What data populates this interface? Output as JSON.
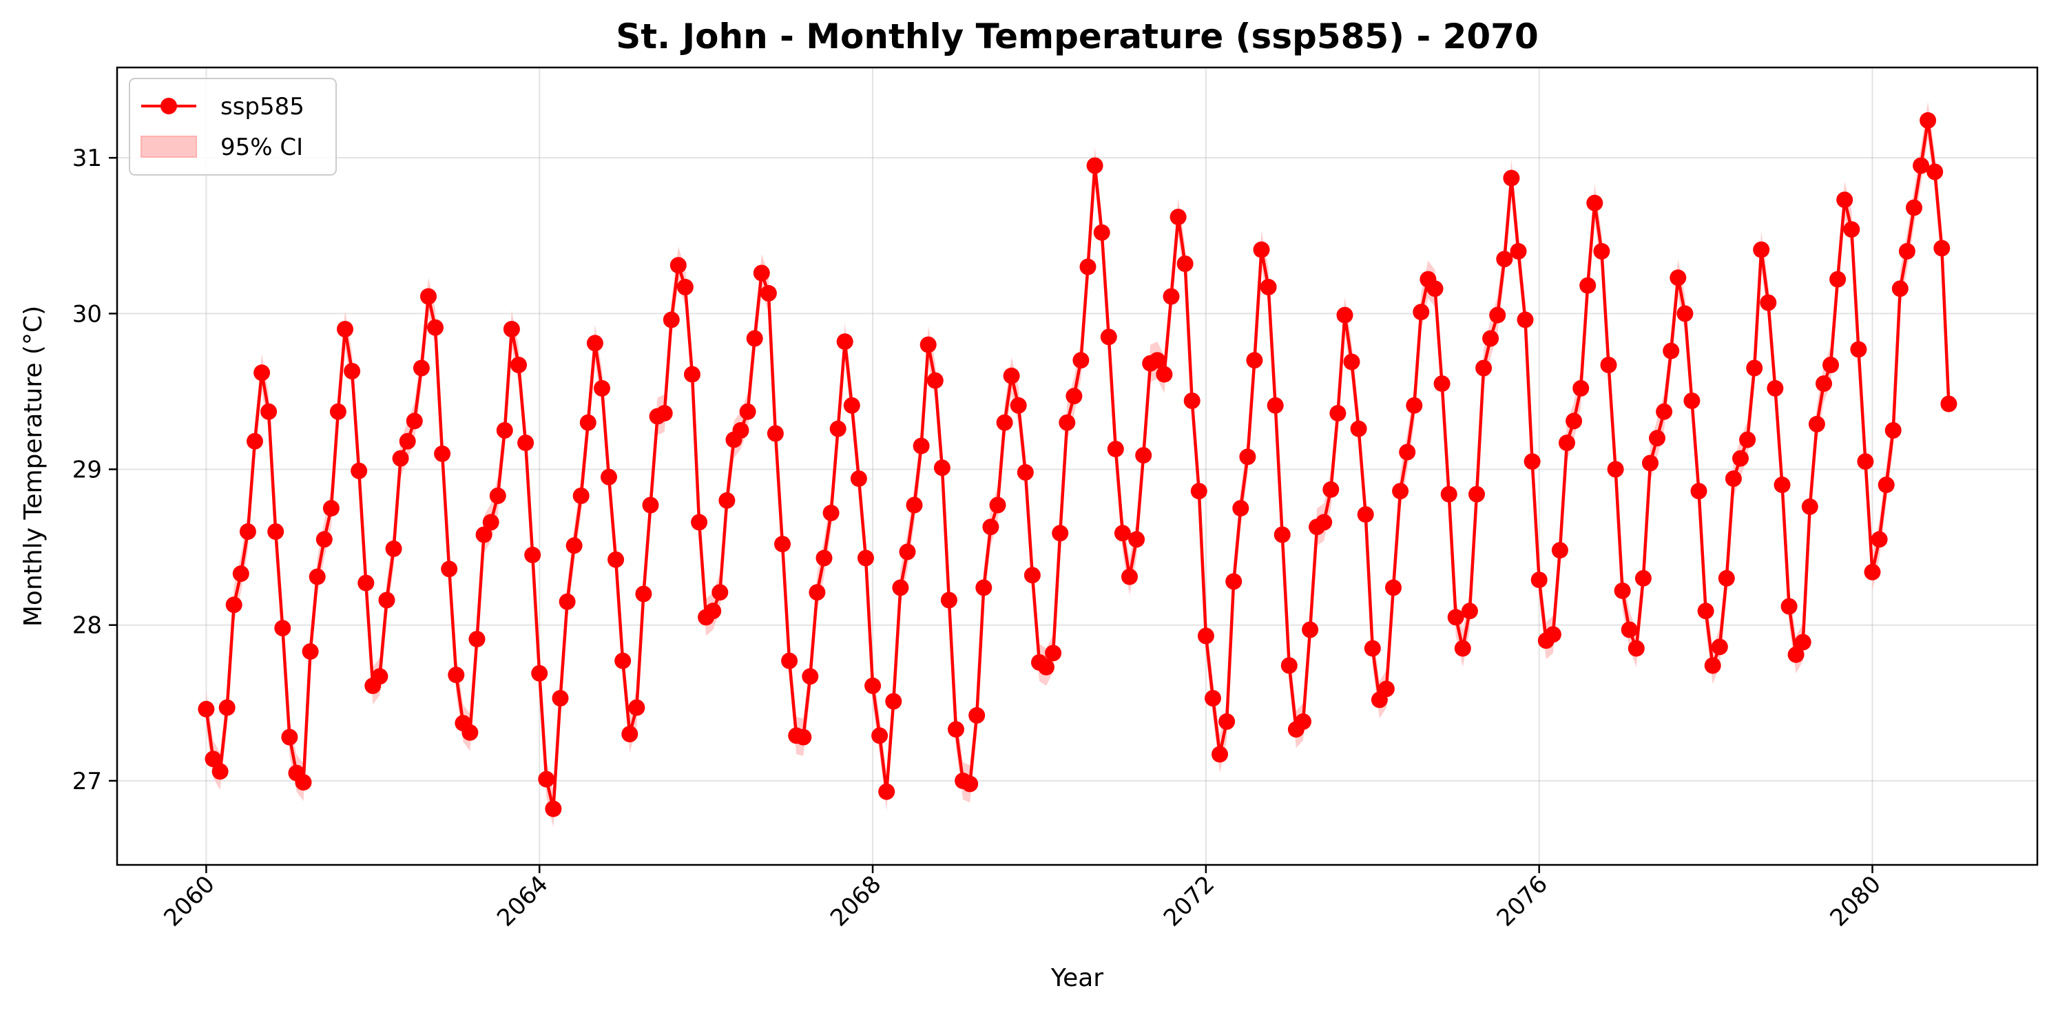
{
  "chart_data": {
    "type": "line",
    "title": "St. John - Monthly Temperature (ssp585) - 2070",
    "xlabel": "Year",
    "ylabel": "Monthly Temperature (°C)",
    "xlim": [
      2058.93,
      2081.98
    ],
    "ylim": [
      26.46,
      31.58
    ],
    "xticks": [
      2060,
      2064,
      2068,
      2072,
      2076,
      2080
    ],
    "xtick_labels": [
      "2060",
      "2064",
      "2068",
      "2072",
      "2076",
      "2080"
    ],
    "yticks": [
      27,
      28,
      29,
      30,
      31
    ],
    "ytick_labels": [
      "27",
      "28",
      "29",
      "30",
      "31"
    ],
    "grid": true,
    "legend_position": "top-left",
    "x_start_year": 2060,
    "months_per_year": 12,
    "ci_half_width": 0.12,
    "colors": {
      "line": "#ff0000",
      "ci_fill": "#ffc6c6"
    },
    "series": [
      {
        "name": "ssp585",
        "ci_name": "95% CI",
        "values": [
          27.46,
          27.14,
          27.06,
          27.47,
          28.13,
          28.33,
          28.6,
          29.18,
          29.62,
          29.37,
          28.6,
          27.98,
          27.28,
          27.05,
          26.99,
          27.83,
          28.31,
          28.55,
          28.75,
          29.37,
          29.9,
          29.63,
          28.99,
          28.27,
          27.61,
          27.67,
          28.16,
          28.49,
          29.07,
          29.18,
          29.31,
          29.65,
          30.11,
          29.91,
          29.1,
          28.36,
          27.68,
          27.37,
          27.31,
          27.91,
          28.58,
          28.66,
          28.83,
          29.25,
          29.9,
          29.67,
          29.17,
          28.45,
          27.69,
          27.01,
          26.82,
          27.53,
          28.15,
          28.51,
          28.83,
          29.3,
          29.81,
          29.52,
          28.95,
          28.42,
          27.77,
          27.3,
          27.47,
          28.2,
          28.77,
          29.34,
          29.36,
          29.96,
          30.31,
          30.17,
          29.61,
          28.66,
          28.05,
          28.09,
          28.21,
          28.8,
          29.19,
          29.25,
          29.37,
          29.84,
          30.26,
          30.13,
          29.23,
          28.52,
          27.77,
          27.29,
          27.28,
          27.67,
          28.21,
          28.43,
          28.72,
          29.26,
          29.82,
          29.41,
          28.94,
          28.43,
          27.61,
          27.29,
          26.93,
          27.51,
          28.24,
          28.47,
          28.77,
          29.15,
          29.8,
          29.57,
          29.01,
          28.16,
          27.33,
          27.0,
          26.98,
          27.42,
          28.24,
          28.63,
          28.77,
          29.3,
          29.6,
          29.41,
          28.98,
          28.32,
          27.76,
          27.73,
          27.82,
          28.59,
          29.3,
          29.47,
          29.7,
          30.3,
          30.95,
          30.52,
          29.85,
          29.13,
          28.59,
          28.31,
          28.55,
          29.09,
          29.68,
          29.7,
          29.61,
          30.11,
          30.62,
          30.32,
          29.44,
          28.86,
          27.93,
          27.53,
          27.17,
          27.38,
          28.28,
          28.75,
          29.08,
          29.7,
          30.41,
          30.17,
          29.41,
          28.58,
          27.74,
          27.33,
          27.38,
          27.97,
          28.63,
          28.66,
          28.87,
          29.36,
          29.99,
          29.69,
          29.26,
          28.71,
          27.85,
          27.52,
          27.59,
          28.24,
          28.86,
          29.11,
          29.41,
          30.01,
          30.22,
          30.16,
          29.55,
          28.84,
          28.05,
          27.85,
          28.09,
          28.84,
          29.65,
          29.84,
          29.99,
          30.35,
          30.87,
          30.4,
          29.96,
          29.05,
          28.29,
          27.9,
          27.94,
          28.48,
          29.17,
          29.31,
          29.52,
          30.18,
          30.71,
          30.4,
          29.67,
          29.0,
          28.22,
          27.97,
          27.85,
          28.3,
          29.04,
          29.2,
          29.37,
          29.76,
          30.23,
          30.0,
          29.44,
          28.86,
          28.09,
          27.74,
          27.86,
          28.3,
          28.94,
          29.07,
          29.19,
          29.65,
          30.41,
          30.07,
          29.52,
          28.9,
          28.12,
          27.81,
          27.89,
          28.76,
          29.29,
          29.55,
          29.67,
          30.22,
          30.73,
          30.54,
          29.77,
          29.05,
          28.34,
          28.55,
          28.9,
          29.25,
          30.16,
          30.4,
          30.68,
          30.95,
          31.24,
          30.91,
          30.42,
          29.42
        ]
      }
    ]
  }
}
